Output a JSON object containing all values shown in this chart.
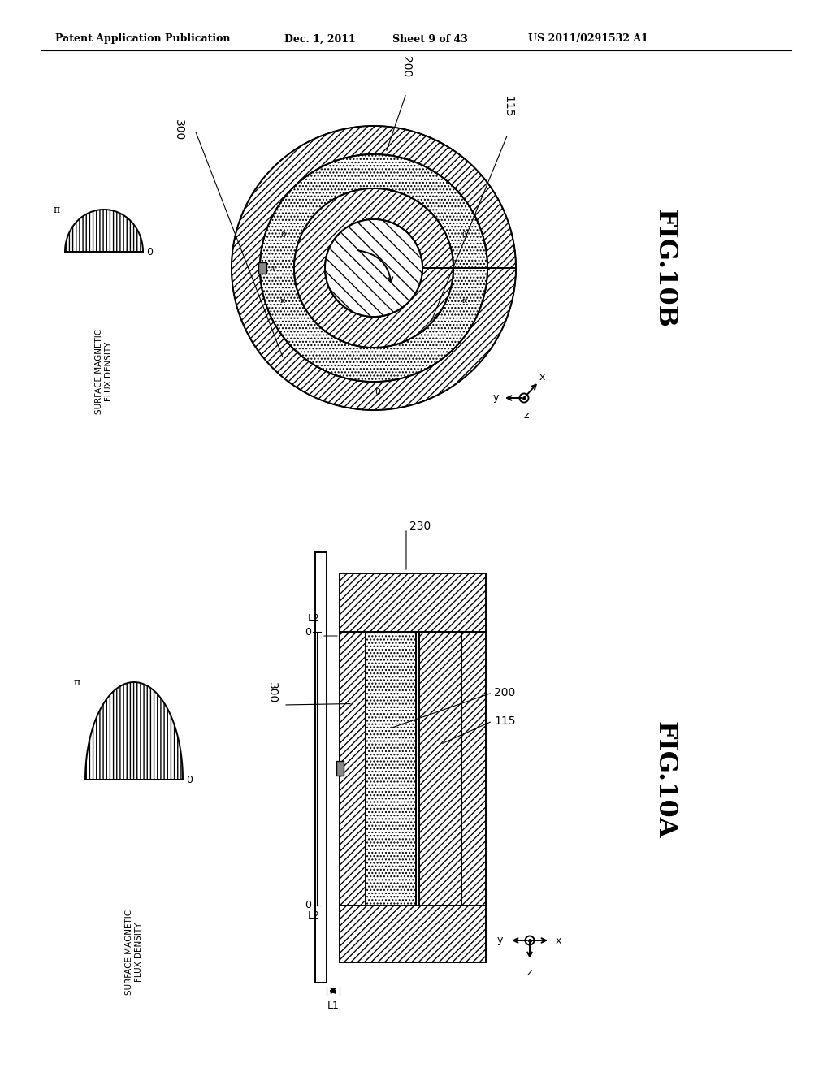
{
  "title_header": "Patent Application Publication",
  "date_header": "Dec. 1, 2011",
  "sheet_header": "Sheet 9 of 43",
  "patent_header": "US 2011/0291532 A1",
  "fig_10A_label": "FIG.10A",
  "fig_10B_label": "FIG.10B",
  "background_color": "#ffffff",
  "line_color": "#000000",
  "smfd_label": "SURFACE MAGNETIC\nFLUX DENSITY",
  "pi": "π"
}
